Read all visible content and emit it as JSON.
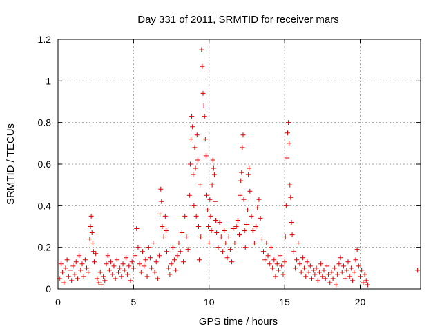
{
  "chart_data": {
    "type": "scatter",
    "title": "Day 331 of 2011, SRMTID for receiver mars",
    "xlabel": "GPS time / hours",
    "ylabel": "SRMTID / TECUs",
    "xlim": [
      0,
      24
    ],
    "ylim": [
      0,
      1.2
    ],
    "xticks": [
      0,
      5,
      10,
      15,
      20
    ],
    "yticks": [
      0,
      0.2,
      0.4,
      0.6,
      0.8,
      1,
      1.2
    ],
    "xtick_labels": [
      "0",
      "5",
      "10",
      "15",
      "20"
    ],
    "ytick_labels": [
      "0",
      "0.2",
      "0.4",
      "0.6",
      "0.8",
      "1",
      "1.2"
    ],
    "grid": true,
    "marker": "+",
    "colors": {
      "series": "#e00000",
      "grid": "#a0a0a0",
      "axes": "#000000"
    },
    "series": [
      {
        "name": "SRMTID",
        "points": [
          [
            0.1,
            0.05
          ],
          [
            0.2,
            0.12
          ],
          [
            0.3,
            0.08
          ],
          [
            0.4,
            0.03
          ],
          [
            0.5,
            0.1
          ],
          [
            0.6,
            0.14
          ],
          [
            0.7,
            0.06
          ],
          [
            0.8,
            0.09
          ],
          [
            0.9,
            0.04
          ],
          [
            1.0,
            0.11
          ],
          [
            1.1,
            0.07
          ],
          [
            1.2,
            0.13
          ],
          [
            1.3,
            0.05
          ],
          [
            1.4,
            0.16
          ],
          [
            1.5,
            0.09
          ],
          [
            1.6,
            0.12
          ],
          [
            1.7,
            0.06
          ],
          [
            1.8,
            0.14
          ],
          [
            1.9,
            0.1
          ],
          [
            2.0,
            0.08
          ],
          [
            2.1,
            0.24
          ],
          [
            2.15,
            0.3
          ],
          [
            2.2,
            0.35
          ],
          [
            2.25,
            0.27
          ],
          [
            2.3,
            0.22
          ],
          [
            2.35,
            0.18
          ],
          [
            2.4,
            0.13
          ],
          [
            2.5,
            0.17
          ],
          [
            2.6,
            0.05
          ],
          [
            2.7,
            0.03
          ],
          [
            2.8,
            0.08
          ],
          [
            2.9,
            0.02
          ],
          [
            3.0,
            0.06
          ],
          [
            3.1,
            0.04
          ],
          [
            3.2,
            0.12
          ],
          [
            3.3,
            0.16
          ],
          [
            3.4,
            0.09
          ],
          [
            3.5,
            0.13
          ],
          [
            3.6,
            0.07
          ],
          [
            3.7,
            0.11
          ],
          [
            3.8,
            0.05
          ],
          [
            3.9,
            0.14
          ],
          [
            4.0,
            0.08
          ],
          [
            4.1,
            0.1
          ],
          [
            4.2,
            0.06
          ],
          [
            4.3,
            0.12
          ],
          [
            4.4,
            0.09
          ],
          [
            4.5,
            0.15
          ],
          [
            4.6,
            0.07
          ],
          [
            4.7,
            0.11
          ],
          [
            4.8,
            0.04
          ],
          [
            4.9,
            0.13
          ],
          [
            5.0,
            0.1
          ],
          [
            5.1,
            0.16
          ],
          [
            5.2,
            0.29
          ],
          [
            5.3,
            0.2
          ],
          [
            5.4,
            0.12
          ],
          [
            5.5,
            0.08
          ],
          [
            5.6,
            0.18
          ],
          [
            5.7,
            0.11
          ],
          [
            5.8,
            0.14
          ],
          [
            5.9,
            0.06
          ],
          [
            6.0,
            0.2
          ],
          [
            6.1,
            0.15
          ],
          [
            6.2,
            0.1
          ],
          [
            6.3,
            0.22
          ],
          [
            6.4,
            0.08
          ],
          [
            6.5,
            0.13
          ],
          [
            6.6,
            0.05
          ],
          [
            6.7,
            0.16
          ],
          [
            6.75,
            0.36
          ],
          [
            6.8,
            0.48
          ],
          [
            6.85,
            0.42
          ],
          [
            6.9,
            0.3
          ],
          [
            7.0,
            0.25
          ],
          [
            7.1,
            0.35
          ],
          [
            7.15,
            0.28
          ],
          [
            7.2,
            0.18
          ],
          [
            7.3,
            0.1
          ],
          [
            7.4,
            0.07
          ],
          [
            7.5,
            0.12
          ],
          [
            7.6,
            0.2
          ],
          [
            7.7,
            0.14
          ],
          [
            7.8,
            0.09
          ],
          [
            7.9,
            0.16
          ],
          [
            8.0,
            0.22
          ],
          [
            8.1,
            0.18
          ],
          [
            8.2,
            0.27
          ],
          [
            8.3,
            0.13
          ],
          [
            8.4,
            0.35
          ],
          [
            8.5,
            0.25
          ],
          [
            8.6,
            0.19
          ],
          [
            8.7,
            0.45
          ],
          [
            8.75,
            0.6
          ],
          [
            8.8,
            0.72
          ],
          [
            8.85,
            0.83
          ],
          [
            8.9,
            0.78
          ],
          [
            8.95,
            0.55
          ],
          [
            9.0,
            0.4
          ],
          [
            9.05,
            0.68
          ],
          [
            9.1,
            0.58
          ],
          [
            9.15,
            0.35
          ],
          [
            9.2,
            0.74
          ],
          [
            9.25,
            0.62
          ],
          [
            9.3,
            0.3
          ],
          [
            9.35,
            0.14
          ],
          [
            9.4,
            0.5
          ],
          [
            9.45,
            0.25
          ],
          [
            9.5,
            1.15
          ],
          [
            9.55,
            1.07
          ],
          [
            9.6,
            0.94
          ],
          [
            9.65,
            0.88
          ],
          [
            9.7,
            0.83
          ],
          [
            9.75,
            0.72
          ],
          [
            9.8,
            0.64
          ],
          [
            9.85,
            0.45
          ],
          [
            9.9,
            0.38
          ],
          [
            9.95,
            0.3
          ],
          [
            10.0,
            0.22
          ],
          [
            10.05,
            0.43
          ],
          [
            10.1,
            0.35
          ],
          [
            10.15,
            0.28
          ],
          [
            10.2,
            0.5
          ],
          [
            10.25,
            0.62
          ],
          [
            10.3,
            0.58
          ],
          [
            10.35,
            0.55
          ],
          [
            10.4,
            0.42
          ],
          [
            10.45,
            0.33
          ],
          [
            10.5,
            0.27
          ],
          [
            10.6,
            0.2
          ],
          [
            10.7,
            0.32
          ],
          [
            10.8,
            0.25
          ],
          [
            10.9,
            0.18
          ],
          [
            11.0,
            0.28
          ],
          [
            11.1,
            0.22
          ],
          [
            11.2,
            0.15
          ],
          [
            11.3,
            0.25
          ],
          [
            11.4,
            0.19
          ],
          [
            11.5,
            0.13
          ],
          [
            11.6,
            0.29
          ],
          [
            11.7,
            0.22
          ],
          [
            11.8,
            0.3
          ],
          [
            11.9,
            0.33
          ],
          [
            12.0,
            0.26
          ],
          [
            12.05,
            0.45
          ],
          [
            12.1,
            0.52
          ],
          [
            12.15,
            0.56
          ],
          [
            12.2,
            0.68
          ],
          [
            12.25,
            0.74
          ],
          [
            12.3,
            0.43
          ],
          [
            12.35,
            0.28
          ],
          [
            12.4,
            0.2
          ],
          [
            12.5,
            0.31
          ],
          [
            12.55,
            0.38
          ],
          [
            12.6,
            0.55
          ],
          [
            12.65,
            0.58
          ],
          [
            12.7,
            0.47
          ],
          [
            12.8,
            0.35
          ],
          [
            12.9,
            0.28
          ],
          [
            13.0,
            0.22
          ],
          [
            13.1,
            0.3
          ],
          [
            13.2,
            0.39
          ],
          [
            13.3,
            0.43
          ],
          [
            13.4,
            0.34
          ],
          [
            13.5,
            0.24
          ],
          [
            13.6,
            0.18
          ],
          [
            13.7,
            0.14
          ],
          [
            13.8,
            0.22
          ],
          [
            13.9,
            0.16
          ],
          [
            14.0,
            0.12
          ],
          [
            14.1,
            0.2
          ],
          [
            14.2,
            0.1
          ],
          [
            14.3,
            0.14
          ],
          [
            14.4,
            0.06
          ],
          [
            14.5,
            0.12
          ],
          [
            14.6,
            0.09
          ],
          [
            14.7,
            0.16
          ],
          [
            14.8,
            0.11
          ],
          [
            14.9,
            0.07
          ],
          [
            15.0,
            0.13
          ],
          [
            15.05,
            0.25
          ],
          [
            15.1,
            0.4
          ],
          [
            15.15,
            0.63
          ],
          [
            15.2,
            0.75
          ],
          [
            15.25,
            0.8
          ],
          [
            15.3,
            0.7
          ],
          [
            15.35,
            0.5
          ],
          [
            15.4,
            0.44
          ],
          [
            15.45,
            0.32
          ],
          [
            15.5,
            0.26
          ],
          [
            15.6,
            0.18
          ],
          [
            15.7,
            0.1
          ],
          [
            15.8,
            0.14
          ],
          [
            15.9,
            0.22
          ],
          [
            16.0,
            0.12
          ],
          [
            16.1,
            0.08
          ],
          [
            16.2,
            0.15
          ],
          [
            16.3,
            0.1
          ],
          [
            16.4,
            0.06
          ],
          [
            16.5,
            0.13
          ],
          [
            16.6,
            0.08
          ],
          [
            16.7,
            0.11
          ],
          [
            16.8,
            0.05
          ],
          [
            16.9,
            0.09
          ],
          [
            17.0,
            0.07
          ],
          [
            17.1,
            0.1
          ],
          [
            17.2,
            0.04
          ],
          [
            17.3,
            0.08
          ],
          [
            17.4,
            0.12
          ],
          [
            17.5,
            0.06
          ],
          [
            17.6,
            0.09
          ],
          [
            17.7,
            0.05
          ],
          [
            17.8,
            0.11
          ],
          [
            17.9,
            0.07
          ],
          [
            18.0,
            0.03
          ],
          [
            18.1,
            0.08
          ],
          [
            18.2,
            0.05
          ],
          [
            18.3,
            0.1
          ],
          [
            18.4,
            0.02
          ],
          [
            18.5,
            0.07
          ],
          [
            18.6,
            0.12
          ],
          [
            18.7,
            0.15
          ],
          [
            18.8,
            0.08
          ],
          [
            18.9,
            0.11
          ],
          [
            19.0,
            0.05
          ],
          [
            19.1,
            0.09
          ],
          [
            19.2,
            0.13
          ],
          [
            19.3,
            0.06
          ],
          [
            19.4,
            0.1
          ],
          [
            19.5,
            0.04
          ],
          [
            19.6,
            0.08
          ],
          [
            19.7,
            0.14
          ],
          [
            19.8,
            0.19
          ],
          [
            19.9,
            0.11
          ],
          [
            20.0,
            0.06
          ],
          [
            20.1,
            0.09
          ],
          [
            20.2,
            0.03
          ],
          [
            20.3,
            0.07
          ],
          [
            20.4,
            0.04
          ],
          [
            20.5,
            0.02
          ],
          [
            23.8,
            0.09
          ]
        ]
      }
    ]
  }
}
